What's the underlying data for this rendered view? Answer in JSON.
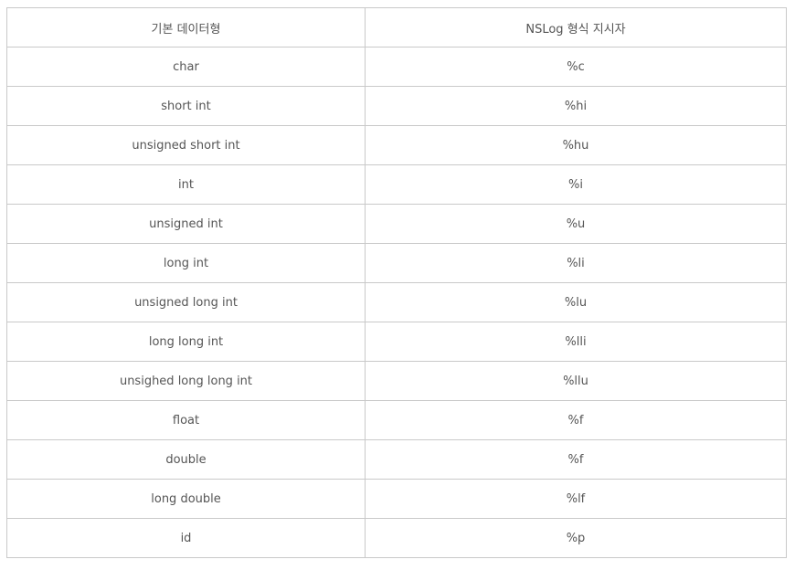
{
  "table": {
    "headers": [
      "기본 데이터형",
      "NSLog 형식 지시자"
    ],
    "rows": [
      [
        "char",
        "%c"
      ],
      [
        "short int",
        "%hi"
      ],
      [
        "unsigned short int",
        "%hu"
      ],
      [
        "int",
        "%i"
      ],
      [
        "unsigned int",
        "%u"
      ],
      [
        "long int",
        "%li"
      ],
      [
        "unsigned long int",
        "%lu"
      ],
      [
        "long long int",
        "%lli"
      ],
      [
        "unsighed long long int",
        "%llu"
      ],
      [
        "float",
        "%f"
      ],
      [
        "double",
        "%f"
      ],
      [
        "long double",
        "%lf"
      ],
      [
        "id",
        "%p"
      ]
    ]
  }
}
